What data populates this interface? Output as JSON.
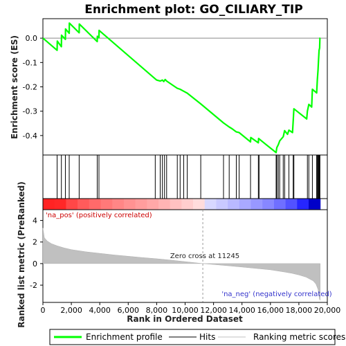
{
  "chart_data": {
    "type": "line",
    "title": "Enrichment plot: GO_CILIARY_TIP",
    "xlabel": "Rank in Ordered Dataset",
    "ylabel_top": "Enrichment score (ES)",
    "ylabel_bottom": "Ranked list metric (PreRanked)",
    "xlim": [
      0,
      20000
    ],
    "x_ticks": [
      "0",
      "2,000",
      "4,000",
      "6,000",
      "8,000",
      "10,000",
      "12,000",
      "14,000",
      "16,000",
      "18,000",
      "20,000"
    ],
    "x_tick_values": [
      0,
      2000,
      4000,
      6000,
      8000,
      10000,
      12000,
      14000,
      16000,
      18000,
      20000
    ],
    "es_ylim": [
      -0.48,
      0.08
    ],
    "es_ticks": [
      "0.0",
      "-0.1",
      "-0.2",
      "-0.3",
      "-0.4"
    ],
    "es_tick_values": [
      0.0,
      -0.1,
      -0.2,
      -0.3,
      -0.4
    ],
    "metric_ylim": [
      -3.6,
      5.0
    ],
    "metric_ticks": [
      "4",
      "2",
      "0",
      "-2"
    ],
    "metric_tick_values": [
      4,
      2,
      0,
      -2
    ],
    "enrichment_profile": {
      "name": "Enrichment profile",
      "color": "#00ff00",
      "points": [
        [
          0,
          0
        ],
        [
          1000,
          -0.05
        ],
        [
          1010,
          -0.012
        ],
        [
          1300,
          -0.035
        ],
        [
          1310,
          0.012
        ],
        [
          1580,
          -0.005
        ],
        [
          1590,
          0.038
        ],
        [
          1850,
          0.02
        ],
        [
          1860,
          0.062
        ],
        [
          2550,
          0.022
        ],
        [
          2560,
          0.058
        ],
        [
          3820,
          -0.014
        ],
        [
          3830,
          0.008
        ],
        [
          3940,
          0.002
        ],
        [
          3950,
          0.032
        ],
        [
          7900,
          -0.167
        ],
        [
          8000,
          -0.172
        ],
        [
          8250,
          -0.176
        ],
        [
          8400,
          -0.172
        ],
        [
          8500,
          -0.178
        ],
        [
          8600,
          -0.17
        ],
        [
          8700,
          -0.176
        ],
        [
          9450,
          -0.206
        ],
        [
          9650,
          -0.21
        ],
        [
          9900,
          -0.218
        ],
        [
          10150,
          -0.226
        ],
        [
          11100,
          -0.27
        ],
        [
          12700,
          -0.348
        ],
        [
          13100,
          -0.365
        ],
        [
          13300,
          -0.372
        ],
        [
          13600,
          -0.385
        ],
        [
          13800,
          -0.388
        ],
        [
          14600,
          -0.426
        ],
        [
          14620,
          -0.408
        ],
        [
          15150,
          -0.43
        ],
        [
          15170,
          -0.412
        ],
        [
          15500,
          -0.428
        ],
        [
          16400,
          -0.47
        ],
        [
          16450,
          -0.45
        ],
        [
          16550,
          -0.438
        ],
        [
          16650,
          -0.422
        ],
        [
          16900,
          -0.405
        ],
        [
          17000,
          -0.38
        ],
        [
          17200,
          -0.395
        ],
        [
          17300,
          -0.378
        ],
        [
          17550,
          -0.388
        ],
        [
          17600,
          -0.34
        ],
        [
          17650,
          -0.29
        ],
        [
          18550,
          -0.332
        ],
        [
          18600,
          -0.3
        ],
        [
          18700,
          -0.272
        ],
        [
          18900,
          -0.283
        ],
        [
          18950,
          -0.21
        ],
        [
          19250,
          -0.225
        ],
        [
          19300,
          -0.17
        ],
        [
          19350,
          -0.13
        ],
        [
          19380,
          -0.09
        ],
        [
          19420,
          -0.05
        ],
        [
          19460,
          -0.04
        ],
        [
          19480,
          0.0
        ],
        [
          19500,
          0.0
        ]
      ]
    },
    "hits": {
      "name": "Hits",
      "x": [
        1000,
        1300,
        1580,
        1850,
        2550,
        3820,
        3940,
        7900,
        8250,
        8400,
        8550,
        8700,
        9450,
        9650,
        9900,
        10150,
        11100,
        12700,
        13100,
        13600,
        13800,
        14600,
        15150,
        15200,
        16400,
        16450,
        16550,
        16650,
        16900,
        17000,
        17300,
        17600,
        17650,
        18600,
        18700,
        18950,
        19250,
        19300,
        19350,
        19380,
        19420,
        19460,
        19480
      ]
    },
    "ranking_metric": {
      "name": "Ranking metric scores",
      "color": "#c0c0c0",
      "points": [
        [
          0,
          3.3
        ],
        [
          100,
          2.4
        ],
        [
          300,
          2.1
        ],
        [
          600,
          1.85
        ],
        [
          1000,
          1.65
        ],
        [
          1500,
          1.45
        ],
        [
          2000,
          1.3
        ],
        [
          3000,
          1.1
        ],
        [
          4000,
          0.95
        ],
        [
          5000,
          0.8
        ],
        [
          6000,
          0.68
        ],
        [
          7000,
          0.56
        ],
        [
          8000,
          0.45
        ],
        [
          9000,
          0.32
        ],
        [
          10000,
          0.18
        ],
        [
          11245,
          0.0
        ],
        [
          12000,
          -0.08
        ],
        [
          13000,
          -0.2
        ],
        [
          14000,
          -0.32
        ],
        [
          15000,
          -0.45
        ],
        [
          16000,
          -0.58
        ],
        [
          17000,
          -0.78
        ],
        [
          17500,
          -0.9
        ],
        [
          18000,
          -1.05
        ],
        [
          18500,
          -1.25
        ],
        [
          19000,
          -1.6
        ],
        [
          19200,
          -1.9
        ],
        [
          19350,
          -2.4
        ],
        [
          19450,
          -3.3
        ],
        [
          19500,
          -3.4
        ]
      ]
    },
    "annotations": {
      "pos_label": "'na_pos' (positively correlated)",
      "neg_label": "'na_neg' (negatively correlated)",
      "zero_cross_label": "Zero cross at 11245",
      "zero_cross_x": 11245
    },
    "legend": {
      "placement": "bottom",
      "entries": [
        "Enrichment profile",
        "Hits",
        "Ranking metric scores"
      ]
    }
  }
}
